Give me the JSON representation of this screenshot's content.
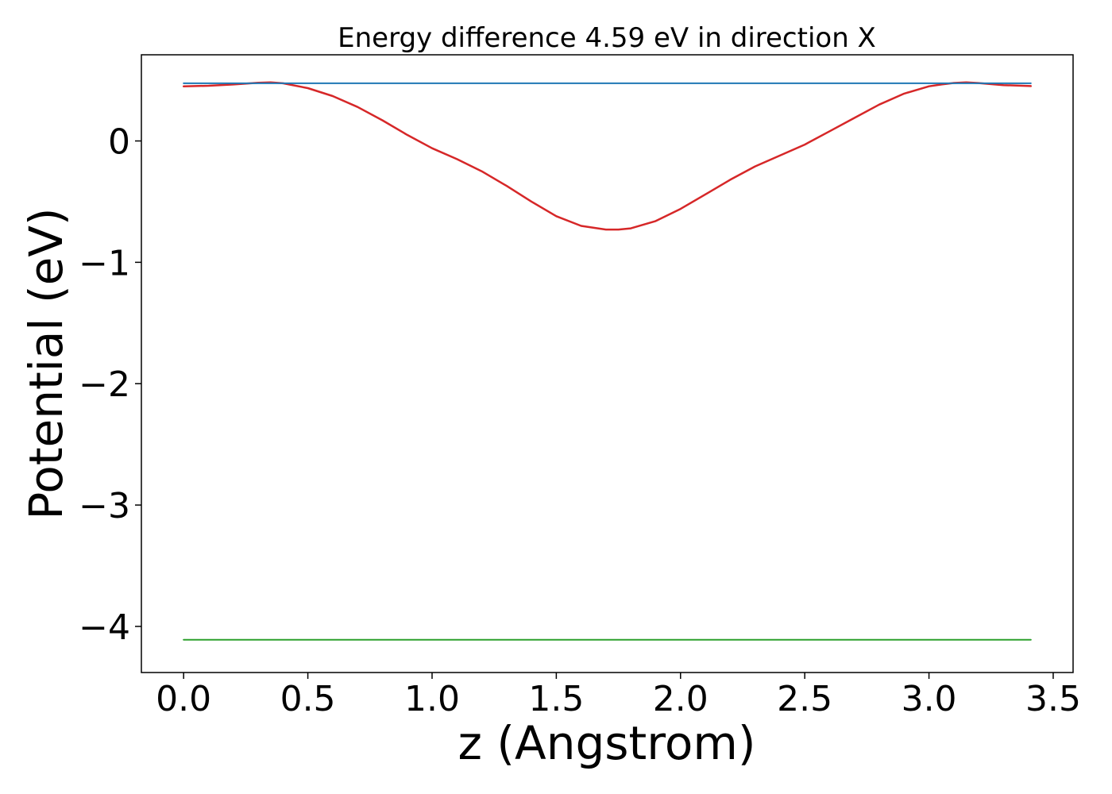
{
  "chart_data": {
    "type": "line",
    "title": "Energy difference 4.59 eV in direction X",
    "xlabel": "z (Angstrom)",
    "ylabel": "Potential (eV)",
    "xlim": [
      -0.17,
      3.58
    ],
    "ylim": [
      -4.38,
      0.71
    ],
    "xticks": [
      0.0,
      0.5,
      1.0,
      1.5,
      2.0,
      2.5,
      3.0,
      3.5
    ],
    "xtick_labels": [
      "0.0",
      "0.5",
      "1.0",
      "1.5",
      "2.0",
      "2.5",
      "3.0",
      "3.5"
    ],
    "yticks": [
      0,
      -1,
      -2,
      -3,
      -4
    ],
    "ytick_labels": [
      "0",
      "−1",
      "−2",
      "−3",
      "−4"
    ],
    "grid": false,
    "series": [
      {
        "color": "#d62728",
        "x": [
          0.0,
          0.1,
          0.2,
          0.3,
          0.35,
          0.4,
          0.5,
          0.6,
          0.7,
          0.8,
          0.9,
          1.0,
          1.1,
          1.2,
          1.3,
          1.4,
          1.5,
          1.6,
          1.7,
          1.75,
          1.8,
          1.9,
          2.0,
          2.1,
          2.2,
          2.3,
          2.4,
          2.5,
          2.6,
          2.7,
          2.8,
          2.9,
          3.0,
          3.05,
          3.1,
          3.15,
          3.2,
          3.3,
          3.41
        ],
        "y": [
          0.45,
          0.455,
          0.465,
          0.48,
          0.482,
          0.475,
          0.435,
          0.37,
          0.28,
          0.17,
          0.05,
          -0.06,
          -0.15,
          -0.25,
          -0.37,
          -0.5,
          -0.62,
          -0.7,
          -0.73,
          -0.73,
          -0.72,
          -0.66,
          -0.56,
          -0.44,
          -0.32,
          -0.21,
          -0.12,
          -0.03,
          0.08,
          0.19,
          0.3,
          0.39,
          0.45,
          0.465,
          0.478,
          0.482,
          0.477,
          0.46,
          0.452
        ]
      },
      {
        "color": "#1f77b4",
        "x": [
          0.0,
          3.41
        ],
        "y": [
          0.475,
          0.475
        ]
      },
      {
        "color": "#2ca02c",
        "x": [
          0.0,
          3.41
        ],
        "y": [
          -4.11,
          -4.11
        ]
      }
    ]
  }
}
